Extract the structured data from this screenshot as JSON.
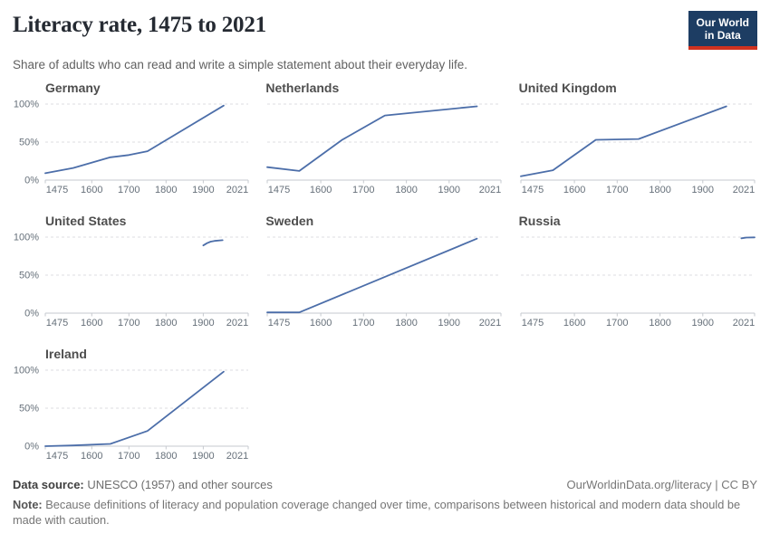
{
  "header": {
    "title": "Literacy rate, 1475 to 2021",
    "subtitle": "Share of adults who can read and write a simple statement about their everyday life."
  },
  "logo": {
    "line1": "Our World",
    "line2": "in Data",
    "bg_color": "#1d3d63",
    "accent_color": "#d0321f"
  },
  "chart_data": {
    "type": "line",
    "title": "Literacy rate, 1475 to 2021",
    "xlabel": "",
    "ylabel": "",
    "x_domain": [
      1475,
      2021
    ],
    "y_domain": [
      0,
      100
    ],
    "x_ticks": [
      1475,
      1600,
      1700,
      1800,
      1900,
      2021
    ],
    "y_ticks_percent": [
      0,
      50,
      100
    ],
    "grid": "dashed horizontal at 50% and 100%",
    "legend_position": "none (small multiples, one series per facet)",
    "line_color": "#4c6ea9",
    "facets": [
      {
        "title": "Germany",
        "points": [
          [
            1475,
            9
          ],
          [
            1550,
            16
          ],
          [
            1650,
            30
          ],
          [
            1700,
            33
          ],
          [
            1750,
            38
          ],
          [
            1955,
            98
          ]
        ]
      },
      {
        "title": "Netherlands",
        "points": [
          [
            1475,
            17
          ],
          [
            1550,
            12
          ],
          [
            1650,
            53
          ],
          [
            1750,
            85
          ],
          [
            1965,
            97
          ]
        ]
      },
      {
        "title": "United Kingdom",
        "points": [
          [
            1475,
            5
          ],
          [
            1550,
            13
          ],
          [
            1650,
            53
          ],
          [
            1750,
            54
          ],
          [
            1955,
            97
          ]
        ]
      },
      {
        "title": "United States",
        "points": [
          [
            1900,
            89
          ],
          [
            1910,
            92
          ],
          [
            1920,
            94
          ],
          [
            1930,
            95
          ],
          [
            1952,
            96
          ]
        ]
      },
      {
        "title": "Sweden",
        "points": [
          [
            1475,
            1
          ],
          [
            1550,
            1
          ],
          [
            1965,
            98
          ]
        ]
      },
      {
        "title": "Russia",
        "points": [
          [
            1990,
            98.5
          ],
          [
            2002,
            99.4
          ],
          [
            2021,
            99.7
          ]
        ]
      },
      {
        "title": "Ireland",
        "points": [
          [
            1475,
            0
          ],
          [
            1550,
            1
          ],
          [
            1650,
            3
          ],
          [
            1750,
            20
          ],
          [
            1955,
            98
          ]
        ]
      }
    ]
  },
  "footer": {
    "source_label": "Data source:",
    "source_text": "UNESCO (1957) and other sources",
    "link_text": "OurWorldinData.org/literacy | CC BY",
    "note_label": "Note:",
    "note_text": "Because definitions of literacy and population coverage changed over time, comparisons between historical and modern data should be made with caution."
  }
}
